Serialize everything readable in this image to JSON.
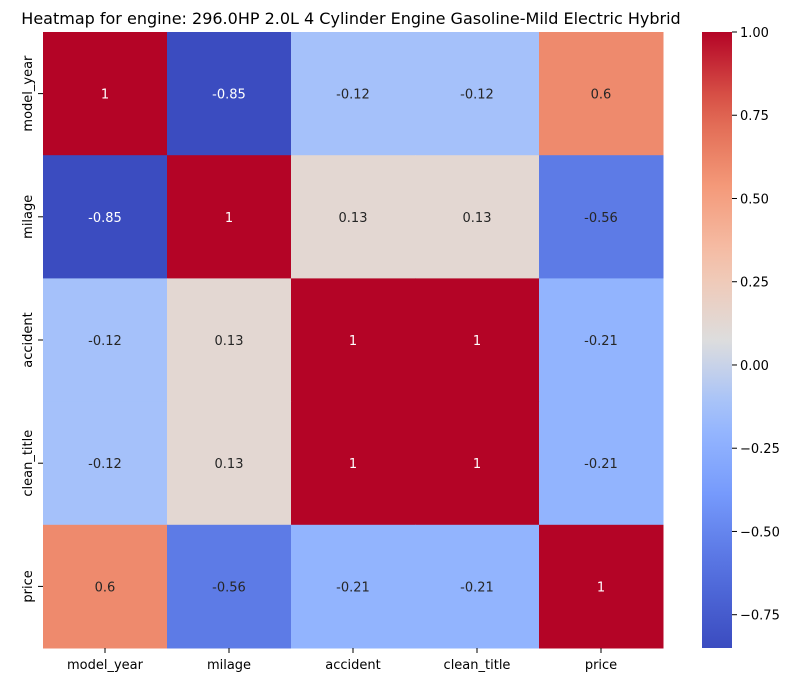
{
  "chart_data": {
    "type": "heatmap",
    "title": "Heatmap for engine: 296.0HP 2.0L 4 Cylinder Engine Gasoline-Mild Electric Hybrid",
    "x_labels": [
      "model_year",
      "milage",
      "accident",
      "clean_title",
      "price"
    ],
    "y_labels": [
      "model_year",
      "milage",
      "accident",
      "clean_title",
      "price"
    ],
    "values": [
      [
        1,
        -0.85,
        -0.12,
        -0.12,
        0.6
      ],
      [
        -0.85,
        1,
        0.13,
        0.13,
        -0.56
      ],
      [
        -0.12,
        0.13,
        1,
        1,
        -0.21
      ],
      [
        -0.12,
        0.13,
        1,
        1,
        -0.21
      ],
      [
        0.6,
        -0.56,
        -0.21,
        -0.21,
        1
      ]
    ],
    "value_labels": [
      [
        "1",
        "-0.85",
        "-0.12",
        "-0.12",
        "0.6"
      ],
      [
        "-0.85",
        "1",
        "0.13",
        "0.13",
        "-0.56"
      ],
      [
        "-0.12",
        "0.13",
        "1",
        "1",
        "-0.21"
      ],
      [
        "-0.12",
        "0.13",
        "1",
        "1",
        "-0.21"
      ],
      [
        "0.6",
        "-0.56",
        "-0.21",
        "-0.21",
        "1"
      ]
    ],
    "colormap": "coolwarm",
    "vmin": -0.85,
    "vmax": 1.0,
    "colorbar_ticks": [
      1.0,
      0.75,
      0.5,
      0.25,
      0.0,
      -0.25,
      -0.5,
      -0.75
    ],
    "colorbar_tick_labels": [
      "1.00",
      "0.75",
      "0.50",
      "0.25",
      "0.00",
      "−0.25",
      "−0.50",
      "−0.75"
    ],
    "grid": false,
    "colorbar_placement": "right"
  }
}
